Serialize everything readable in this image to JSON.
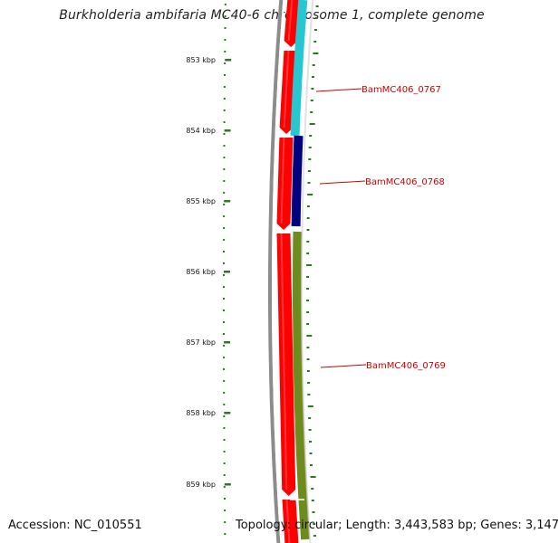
{
  "header": {
    "title": "Burkholderia ambifaria MC40-6 chromosome 1, complete genome"
  },
  "footer": {
    "accession": "Accession: NC_010551",
    "topology": "Topology: circular; Length: 3,443,583 bp; Genes: 3,147"
  },
  "colors": {
    "cds_forward": "#ff0000",
    "backbone": "#8c8c8c",
    "cog_cyan": "#27c7d2",
    "cog_navy": "#00007f",
    "cog_olive": "#6e8b1d",
    "tick": "#2a7a1e",
    "label": "#cc0000"
  },
  "scale": {
    "unit": "kbp",
    "ticks": [
      "853 kbp",
      "854 kbp",
      "855 kbp",
      "856 kbp",
      "857 kbp",
      "858 kbp",
      "859 kbp"
    ]
  },
  "genes": [
    {
      "label": "BamMC406_0767",
      "cog_color": "cyan"
    },
    {
      "label": "BamMC406_0768",
      "cog_color": "navy"
    },
    {
      "label": "BamMC406_0769",
      "cog_color": "olive"
    }
  ]
}
